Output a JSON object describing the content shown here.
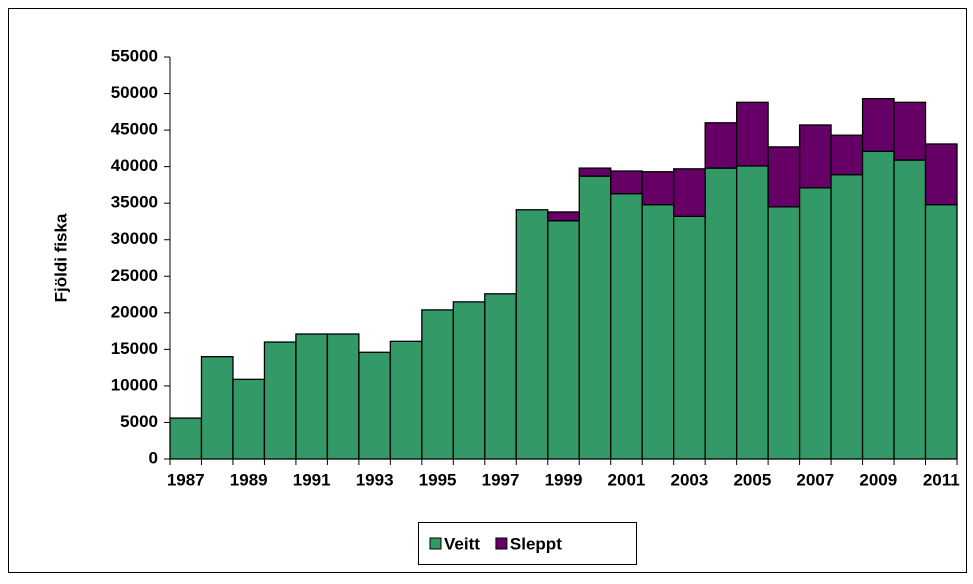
{
  "chart_data": {
    "type": "bar",
    "stacked": true,
    "y_label": "Fjöldi fiska",
    "categories": [
      "1987",
      null,
      "1989",
      null,
      "1991",
      null,
      "1993",
      null,
      "1995",
      null,
      "1997",
      null,
      "1999",
      null,
      "2001",
      null,
      "2003",
      null,
      "2005",
      null,
      "2007",
      null,
      "2009",
      null,
      "2011"
    ],
    "series": [
      {
        "name": "Veitt",
        "color": "#339966",
        "values": [
          5600,
          14000,
          10900,
          16000,
          17100,
          17100,
          14600,
          16100,
          20400,
          21500,
          22600,
          34100,
          32600,
          38700,
          36300,
          34800,
          33200,
          39800,
          40100,
          34500,
          37100,
          38900,
          42100,
          40900,
          34800
        ]
      },
      {
        "name": "Sleppt",
        "color": "#660066",
        "values": [
          0,
          0,
          0,
          0,
          0,
          0,
          0,
          0,
          0,
          0,
          0,
          0,
          1200,
          1100,
          3100,
          4500,
          6500,
          6200,
          8700,
          8200,
          8600,
          5400,
          7200,
          7900,
          8300
        ]
      }
    ],
    "ylim": [
      0,
      55000
    ],
    "yticks": [
      0,
      5000,
      10000,
      15000,
      20000,
      25000,
      30000,
      35000,
      40000,
      45000,
      50000,
      55000
    ],
    "legend": "bottom"
  }
}
